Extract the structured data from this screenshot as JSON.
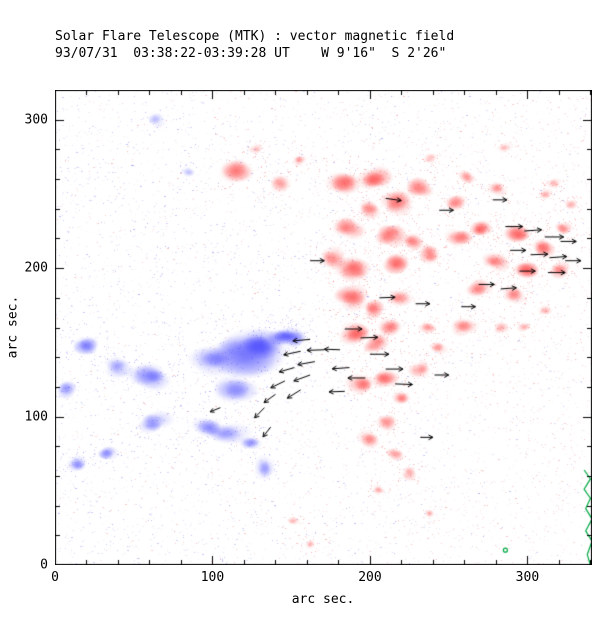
{
  "header": {
    "title": "Solar Flare Telescope (MTK) : vector magnetic field",
    "subtitle": "93/07/31  03:38:22-03:39:28 UT    W 9'16\"  S 2'26\""
  },
  "chart_data": {
    "type": "heatmap",
    "title": "Solar Flare Telescope (MTK) : vector magnetic field",
    "xlabel": "arc sec.",
    "ylabel": "arc sec.",
    "xlim": [
      0,
      341
    ],
    "ylim": [
      0,
      320
    ],
    "xticks": [
      0,
      100,
      200,
      300
    ],
    "yticks": [
      0,
      100,
      200,
      300
    ],
    "minor_step": 20,
    "grid": false,
    "legend": "none",
    "colors": {
      "positive_polarity": "#fc3c3c",
      "negative_polarity": "#4646fc",
      "contour": "#00aa44",
      "vectors": "#000000",
      "frame": "#000000",
      "background": "#ffffff"
    },
    "noise": {
      "count": 7000,
      "seed": 12345
    },
    "blue_blobs": [
      [
        130,
        148,
        13,
        9,
        1.0
      ],
      [
        117,
        143,
        24,
        14,
        0.8
      ],
      [
        146,
        153,
        9,
        6,
        0.85
      ],
      [
        150,
        153,
        8,
        6,
        0.75
      ],
      [
        100,
        138,
        12,
        8,
        0.6
      ],
      [
        115,
        118,
        12,
        8,
        0.55
      ],
      [
        60,
        127,
        10,
        7,
        0.75
      ],
      [
        41,
        133,
        8,
        6,
        0.6
      ],
      [
        19,
        148,
        8,
        6,
        0.7
      ],
      [
        8,
        118,
        6,
        5,
        0.5
      ],
      [
        63,
        96,
        9,
        6,
        0.65
      ],
      [
        32,
        75,
        7,
        5,
        0.55
      ],
      [
        14,
        68,
        6,
        5,
        0.5
      ],
      [
        98,
        92,
        9,
        6,
        0.6
      ],
      [
        110,
        88,
        12,
        7,
        0.5
      ],
      [
        124,
        84,
        7,
        5,
        0.5
      ],
      [
        133,
        65,
        5,
        7,
        0.45
      ],
      [
        65,
        300,
        5,
        4,
        0.3
      ],
      [
        85,
        265,
        4,
        3,
        0.25
      ]
    ],
    "red_blobs": [
      [
        117,
        267,
        9,
        7,
        0.7
      ],
      [
        143,
        257,
        6,
        5,
        0.5
      ],
      [
        156,
        272,
        5,
        4,
        0.45
      ],
      [
        184,
        258,
        9,
        7,
        0.75
      ],
      [
        203,
        261,
        10,
        8,
        0.9
      ],
      [
        216,
        244,
        8,
        7,
        0.8
      ],
      [
        232,
        254,
        8,
        6,
        0.7
      ],
      [
        254,
        244,
        6,
        5,
        0.55
      ],
      [
        261,
        261,
        5,
        4,
        0.5
      ],
      [
        281,
        253,
        5,
        4,
        0.5
      ],
      [
        311,
        250,
        4,
        3,
        0.35
      ],
      [
        187,
        227,
        8,
        6,
        0.7
      ],
      [
        213,
        223,
        9,
        7,
        0.95
      ],
      [
        228,
        218,
        6,
        5,
        0.6
      ],
      [
        200,
        240,
        6,
        5,
        0.6
      ],
      [
        175,
        207,
        7,
        6,
        0.65
      ],
      [
        190,
        199,
        9,
        7,
        0.95
      ],
      [
        216,
        203,
        8,
        6,
        0.8
      ],
      [
        238,
        210,
        7,
        6,
        0.7
      ],
      [
        257,
        221,
        7,
        5,
        0.65
      ],
      [
        270,
        227,
        6,
        5,
        0.85
      ],
      [
        295,
        224,
        8,
        6,
        0.8
      ],
      [
        311,
        214,
        7,
        6,
        0.75
      ],
      [
        322,
        227,
        5,
        4,
        0.6
      ],
      [
        280,
        204,
        7,
        5,
        0.7
      ],
      [
        298,
        199,
        8,
        6,
        0.9
      ],
      [
        321,
        199,
        6,
        5,
        0.7
      ],
      [
        270,
        187,
        7,
        5,
        0.65
      ],
      [
        292,
        182,
        6,
        5,
        0.6
      ],
      [
        187,
        180,
        9,
        7,
        0.85
      ],
      [
        203,
        172,
        7,
        6,
        0.7
      ],
      [
        219,
        180,
        7,
        5,
        0.6
      ],
      [
        190,
        156,
        9,
        7,
        0.9
      ],
      [
        203,
        149,
        7,
        6,
        0.75
      ],
      [
        213,
        160,
        6,
        5,
        0.65
      ],
      [
        238,
        160,
        5,
        4,
        0.5
      ],
      [
        260,
        160,
        7,
        5,
        0.6
      ],
      [
        283,
        159,
        5,
        4,
        0.35
      ],
      [
        244,
        146,
        5,
        4,
        0.5
      ],
      [
        232,
        133,
        6,
        5,
        0.55
      ],
      [
        210,
        126,
        8,
        6,
        0.85
      ],
      [
        194,
        122,
        7,
        6,
        0.7
      ],
      [
        219,
        112,
        6,
        5,
        0.6
      ],
      [
        210,
        96,
        6,
        5,
        0.6
      ],
      [
        200,
        85,
        6,
        5,
        0.55
      ],
      [
        216,
        75,
        5,
        4,
        0.5
      ],
      [
        225,
        62,
        4,
        4,
        0.45
      ],
      [
        206,
        51,
        4,
        3,
        0.4
      ],
      [
        238,
        274,
        4,
        3,
        0.35
      ],
      [
        286,
        281,
        4,
        3,
        0.3
      ],
      [
        317,
        257,
        4,
        3,
        0.4
      ],
      [
        327,
        243,
        4,
        3,
        0.4
      ],
      [
        298,
        160,
        4,
        3,
        0.4
      ],
      [
        311,
        172,
        4,
        3,
        0.35
      ],
      [
        152,
        30,
        4,
        3,
        0.3
      ],
      [
        162,
        14,
        3,
        3,
        0.3
      ],
      [
        238,
        34,
        3,
        3,
        0.3
      ],
      [
        127,
        280,
        4,
        3,
        0.3
      ]
    ],
    "arrows": [
      [
        162,
        152,
        185,
        11
      ],
      [
        171,
        145,
        182,
        11
      ],
      [
        156,
        144,
        192,
        11
      ],
      [
        165,
        137,
        190,
        11
      ],
      [
        152,
        133,
        196,
        10
      ],
      [
        162,
        128,
        200,
        11
      ],
      [
        146,
        124,
        206,
        10
      ],
      [
        156,
        118,
        212,
        10
      ],
      [
        140,
        115,
        216,
        9
      ],
      [
        133,
        106,
        226,
        9
      ],
      [
        105,
        106,
        202,
        7
      ],
      [
        184,
        159,
        0,
        11
      ],
      [
        194,
        153,
        2,
        11
      ],
      [
        181,
        145,
        178,
        10
      ],
      [
        200,
        142,
        0,
        12
      ],
      [
        187,
        133,
        184,
        11
      ],
      [
        197,
        126,
        180,
        11
      ],
      [
        184,
        117,
        182,
        10
      ],
      [
        210,
        132,
        0,
        11
      ],
      [
        216,
        122,
        358,
        11
      ],
      [
        210,
        247,
        352,
        10
      ],
      [
        244,
        239,
        0,
        9
      ],
      [
        278,
        246,
        0,
        9
      ],
      [
        162,
        205,
        0,
        9
      ],
      [
        206,
        180,
        2,
        10
      ],
      [
        229,
        176,
        0,
        9
      ],
      [
        286,
        228,
        0,
        11
      ],
      [
        298,
        225,
        4,
        11
      ],
      [
        311,
        221,
        0,
        12
      ],
      [
        321,
        218,
        0,
        10
      ],
      [
        289,
        212,
        0,
        10
      ],
      [
        302,
        209,
        2,
        11
      ],
      [
        314,
        207,
        4,
        11
      ],
      [
        324,
        205,
        0,
        10
      ],
      [
        295,
        198,
        0,
        10
      ],
      [
        313,
        197,
        0,
        11
      ],
      [
        269,
        189,
        0,
        10
      ],
      [
        283,
        186,
        4,
        10
      ],
      [
        258,
        174,
        0,
        9
      ],
      [
        232,
        86,
        0,
        8
      ],
      [
        137,
        93,
        232,
        8
      ],
      [
        241,
        128,
        0,
        9
      ]
    ],
    "contour_green": [
      [
        336,
        64
      ],
      [
        340,
        58
      ],
      [
        336,
        51
      ],
      [
        340,
        45
      ],
      [
        337,
        38
      ],
      [
        341,
        31
      ],
      [
        337,
        23
      ],
      [
        341,
        16
      ],
      [
        338,
        7
      ],
      [
        340,
        0
      ]
    ],
    "green_dots": [
      [
        286,
        10
      ]
    ]
  }
}
